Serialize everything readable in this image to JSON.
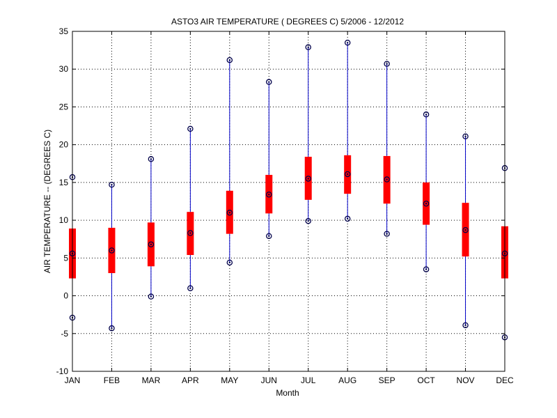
{
  "chart_data": {
    "type": "box",
    "title": "ASTO3  AIR TEMPERATURE ( DEGREES C) 5/2006 - 12/2012",
    "xlabel": "Month",
    "ylabel": "AIR TEMPERATURE -- (DEGREES C)",
    "ylim": [
      -10,
      35
    ],
    "yticks": [
      -10,
      -5,
      0,
      5,
      10,
      15,
      20,
      25,
      30,
      35
    ],
    "categories": [
      "JAN",
      "FEB",
      "MAR",
      "APR",
      "MAY",
      "JUN",
      "JUL",
      "AUG",
      "SEP",
      "OCT",
      "NOV",
      "DEC"
    ],
    "series": [
      {
        "min": [
          -2.9,
          -4.3,
          -0.1,
          1.0,
          4.4,
          7.9,
          9.9,
          10.2,
          8.2,
          3.5,
          -3.9,
          -5.5
        ],
        "q1": [
          2.3,
          3.0,
          3.9,
          5.4,
          8.2,
          10.9,
          12.7,
          13.5,
          12.2,
          9.4,
          5.2,
          2.3
        ],
        "median": [
          5.6,
          6.0,
          6.8,
          8.3,
          11.0,
          13.4,
          15.5,
          16.1,
          15.4,
          12.2,
          8.7,
          5.6
        ],
        "q3": [
          8.9,
          9.0,
          9.7,
          11.1,
          13.9,
          16.0,
          18.4,
          18.6,
          18.5,
          15.0,
          12.3,
          9.2
        ],
        "max": [
          15.7,
          14.7,
          18.1,
          22.1,
          31.2,
          28.3,
          32.9,
          33.5,
          30.7,
          24.0,
          21.1,
          16.9
        ]
      }
    ],
    "grid": true,
    "colors": {
      "box": "#ff0000",
      "whisker": "#0000c8",
      "marker": "#00004a",
      "grid": "#000000",
      "axes": "#000000"
    }
  }
}
